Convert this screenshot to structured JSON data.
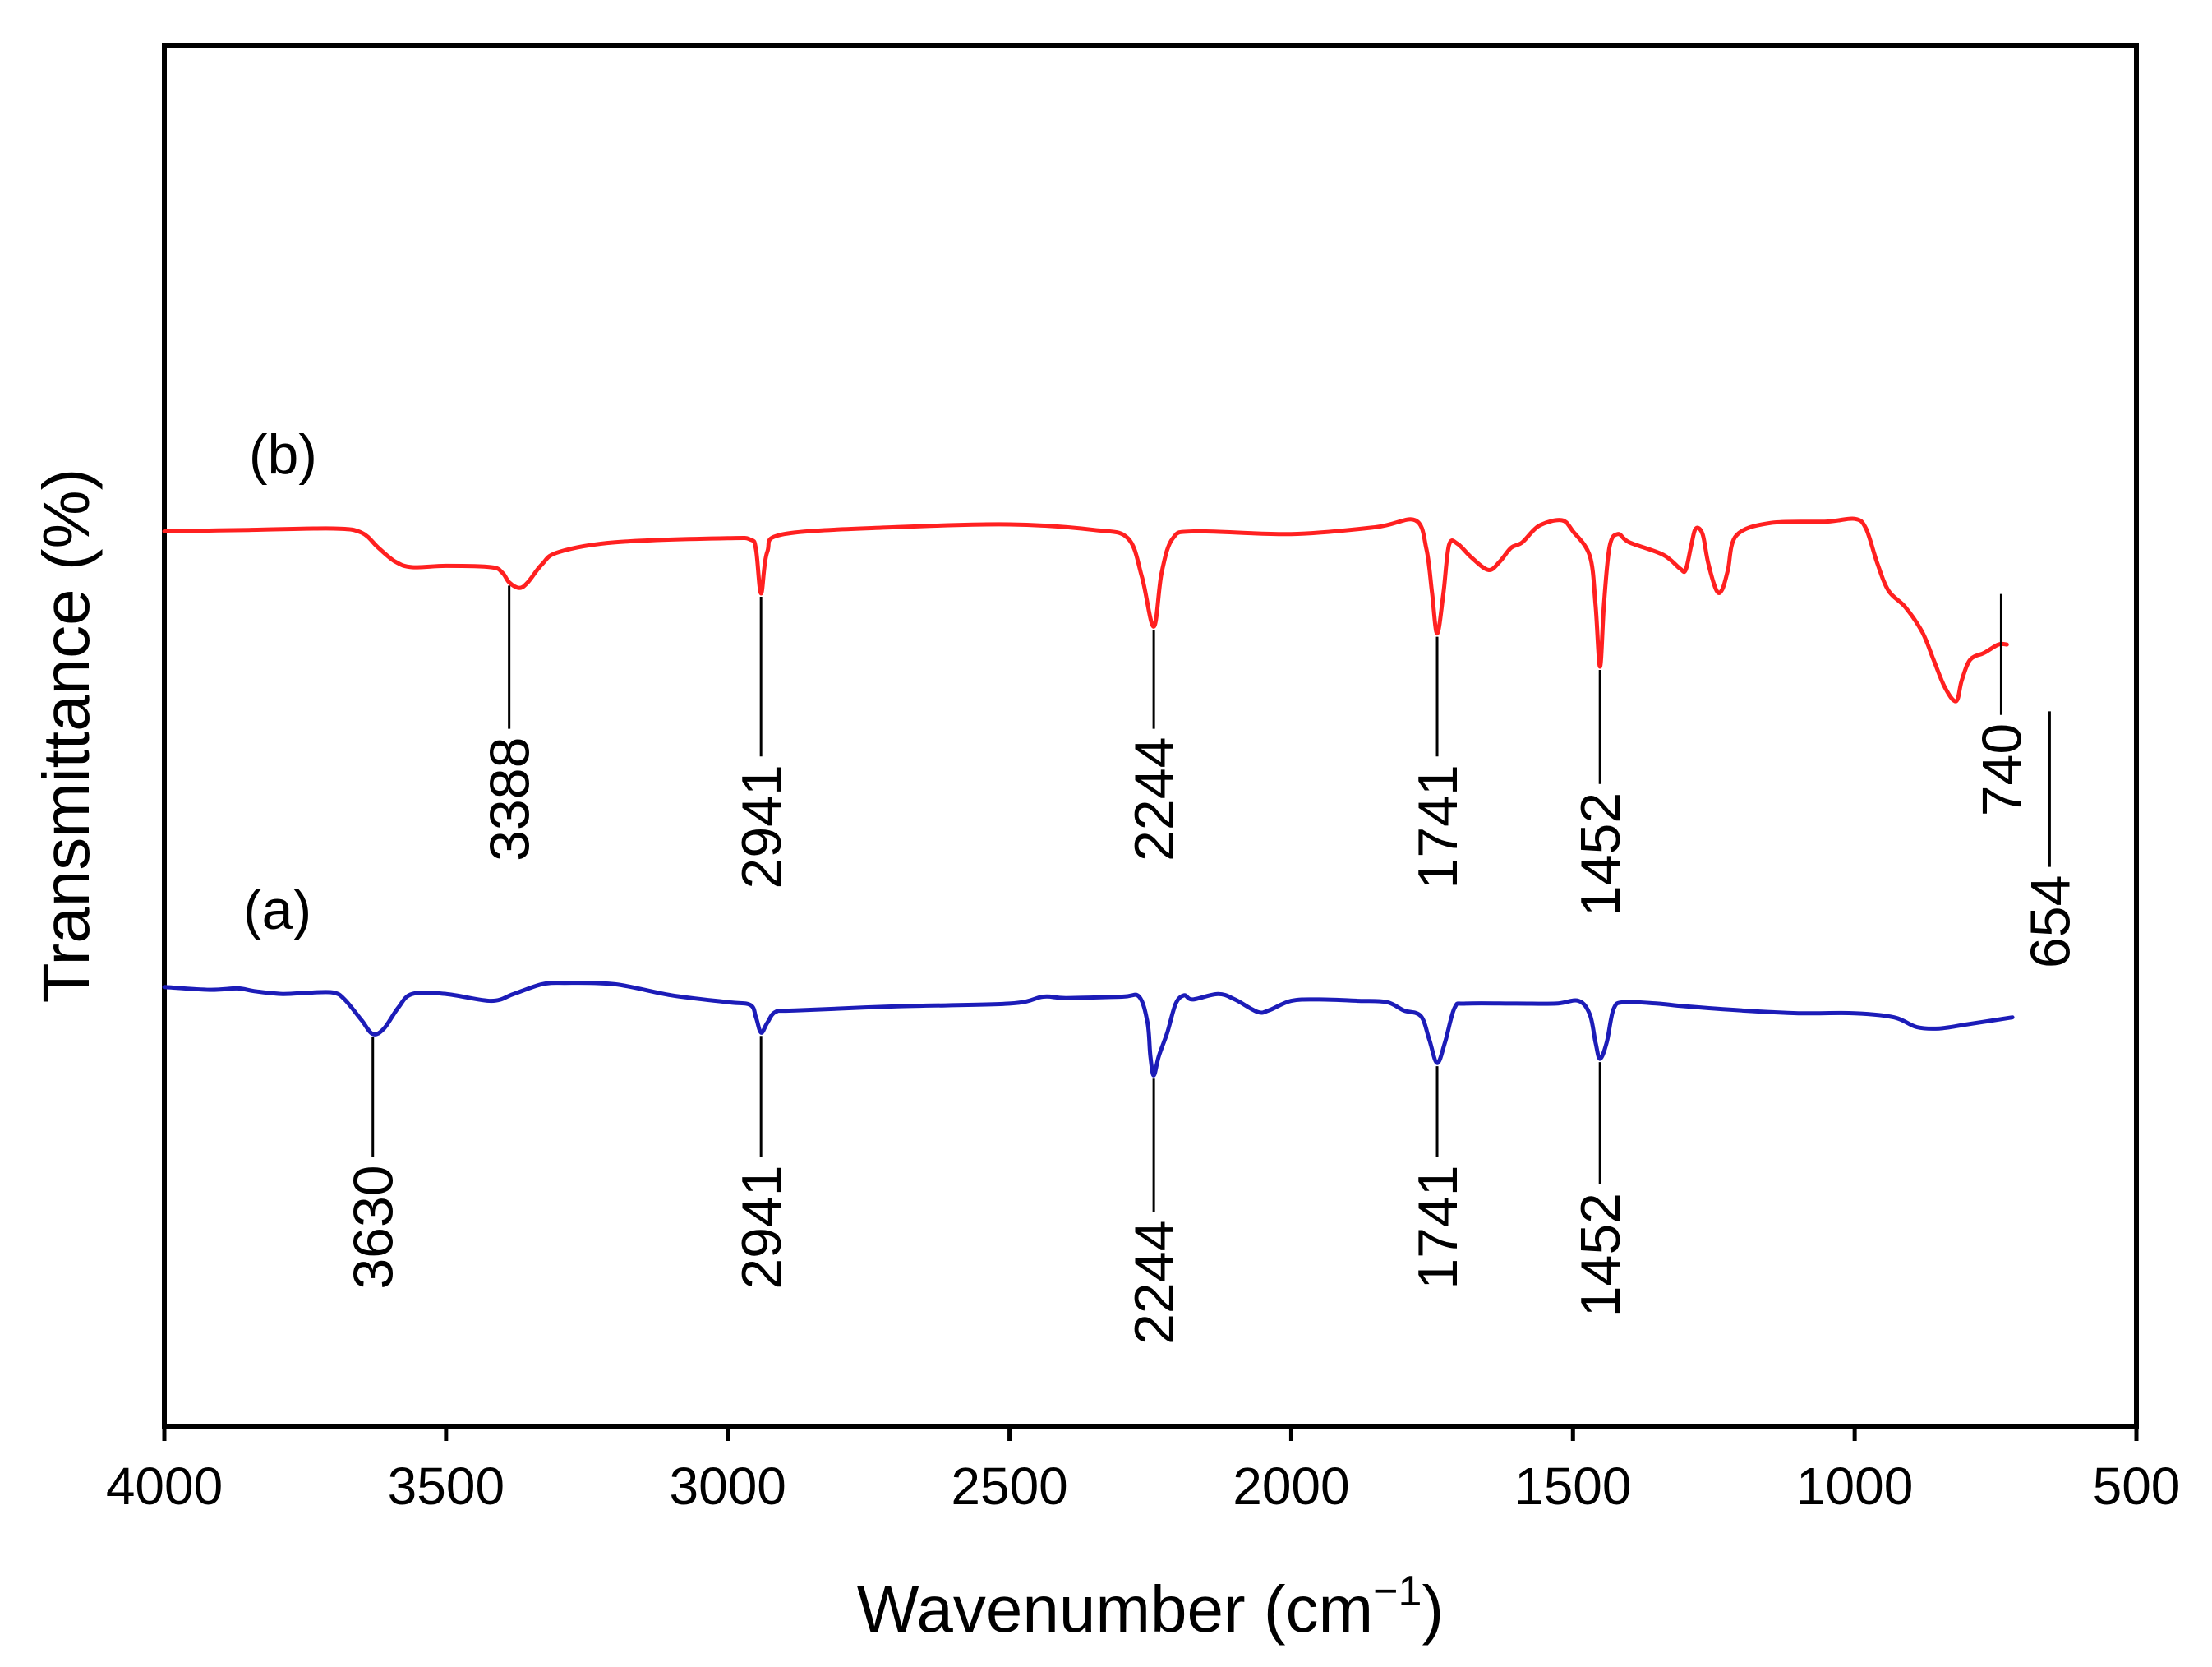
{
  "chart_data": {
    "type": "line",
    "title": "",
    "xlabel": "Wavenumber (cm",
    "xlabel_sup": "−1",
    "xlabel_close": ")",
    "ylabel": "Transmittance (%)",
    "xlim": [
      4000,
      500
    ],
    "ylim": [
      0,
      100
    ],
    "x_ticks": [
      4000,
      3500,
      3000,
      2500,
      2000,
      1500,
      1000,
      500
    ],
    "x_tick_labels": [
      "4000",
      "3500",
      "3000",
      "2500",
      "2000",
      "1500",
      "1000",
      "500"
    ],
    "series": [
      {
        "name": "(b)",
        "color": "#ff2020",
        "label_at": [
          3850,
          69
        ],
        "points": [
          [
            4000,
            64.8
          ],
          [
            3850,
            64.9
          ],
          [
            3700,
            65.0
          ],
          [
            3650,
            64.7
          ],
          [
            3620,
            63.6
          ],
          [
            3590,
            62.6
          ],
          [
            3560,
            62.2
          ],
          [
            3500,
            62.3
          ],
          [
            3420,
            62.2
          ],
          [
            3400,
            61.8
          ],
          [
            3388,
            61.1
          ],
          [
            3370,
            60.7
          ],
          [
            3355,
            61.1
          ],
          [
            3330,
            62.4
          ],
          [
            3300,
            63.3
          ],
          [
            3200,
            64.0
          ],
          [
            3000,
            64.3
          ],
          [
            2960,
            64.2
          ],
          [
            2950,
            63.5
          ],
          [
            2941,
            60.3
          ],
          [
            2930,
            63.3
          ],
          [
            2900,
            64.6
          ],
          [
            2700,
            65.1
          ],
          [
            2500,
            65.3
          ],
          [
            2350,
            64.9
          ],
          [
            2290,
            64.3
          ],
          [
            2265,
            61.5
          ],
          [
            2244,
            57.9
          ],
          [
            2230,
            61.8
          ],
          [
            2210,
            64.3
          ],
          [
            2170,
            64.8
          ],
          [
            2000,
            64.6
          ],
          [
            1850,
            65.1
          ],
          [
            1780,
            65.6
          ],
          [
            1760,
            63.5
          ],
          [
            1750,
            60.3
          ],
          [
            1741,
            57.4
          ],
          [
            1730,
            60.3
          ],
          [
            1720,
            63.8
          ],
          [
            1705,
            63.9
          ],
          [
            1680,
            62.9
          ],
          [
            1650,
            62.0
          ],
          [
            1630,
            62.6
          ],
          [
            1610,
            63.6
          ],
          [
            1590,
            64.0
          ],
          [
            1560,
            65.2
          ],
          [
            1520,
            65.6
          ],
          [
            1500,
            64.8
          ],
          [
            1470,
            63.0
          ],
          [
            1460,
            59.5
          ],
          [
            1452,
            55.0
          ],
          [
            1445,
            59.5
          ],
          [
            1435,
            63.7
          ],
          [
            1420,
            64.6
          ],
          [
            1400,
            64.0
          ],
          [
            1340,
            63.1
          ],
          [
            1310,
            62.1
          ],
          [
            1300,
            62.0
          ],
          [
            1290,
            63.8
          ],
          [
            1282,
            65.0
          ],
          [
            1270,
            64.6
          ],
          [
            1260,
            62.5
          ],
          [
            1245,
            60.5
          ],
          [
            1235,
            60.6
          ],
          [
            1225,
            62.0
          ],
          [
            1210,
            64.5
          ],
          [
            1150,
            65.4
          ],
          [
            1050,
            65.5
          ],
          [
            1000,
            65.7
          ],
          [
            980,
            65.0
          ],
          [
            960,
            62.5
          ],
          [
            940,
            60.5
          ],
          [
            910,
            59.3
          ],
          [
            880,
            57.5
          ],
          [
            860,
            55.5
          ],
          [
            840,
            53.5
          ],
          [
            820,
            52.5
          ],
          [
            810,
            54.0
          ],
          [
            795,
            55.5
          ],
          [
            770,
            56.0
          ],
          [
            745,
            56.6
          ],
          [
            730,
            56.6
          ]
        ]
      },
      {
        "name": "(a)",
        "color": "#1c1cb8",
        "label_at": [
          3860,
          36
        ],
        "points": [
          [
            4000,
            31.8
          ],
          [
            3920,
            31.6
          ],
          [
            3870,
            31.7
          ],
          [
            3840,
            31.5
          ],
          [
            3790,
            31.3
          ],
          [
            3740,
            31.4
          ],
          [
            3700,
            31.4
          ],
          [
            3680,
            30.9
          ],
          [
            3650,
            29.4
          ],
          [
            3630,
            28.4
          ],
          [
            3610,
            28.8
          ],
          [
            3585,
            30.3
          ],
          [
            3560,
            31.3
          ],
          [
            3500,
            31.3
          ],
          [
            3420,
            30.8
          ],
          [
            3380,
            31.3
          ],
          [
            3330,
            32.0
          ],
          [
            3290,
            32.1
          ],
          [
            3200,
            32.0
          ],
          [
            3100,
            31.2
          ],
          [
            3000,
            30.7
          ],
          [
            2960,
            30.5
          ],
          [
            2950,
            29.6
          ],
          [
            2941,
            28.5
          ],
          [
            2930,
            29.2
          ],
          [
            2915,
            30.0
          ],
          [
            2880,
            30.1
          ],
          [
            2700,
            30.4
          ],
          [
            2500,
            30.6
          ],
          [
            2440,
            31.1
          ],
          [
            2400,
            31.0
          ],
          [
            2300,
            31.1
          ],
          [
            2270,
            31.1
          ],
          [
            2255,
            29.2
          ],
          [
            2250,
            26.8
          ],
          [
            2244,
            25.4
          ],
          [
            2235,
            26.8
          ],
          [
            2220,
            28.5
          ],
          [
            2205,
            30.6
          ],
          [
            2190,
            31.2
          ],
          [
            2175,
            30.9
          ],
          [
            2130,
            31.3
          ],
          [
            2100,
            30.9
          ],
          [
            2060,
            30.0
          ],
          [
            2040,
            30.1
          ],
          [
            2000,
            30.8
          ],
          [
            1950,
            30.9
          ],
          [
            1880,
            30.8
          ],
          [
            1830,
            30.7
          ],
          [
            1800,
            30.1
          ],
          [
            1770,
            29.7
          ],
          [
            1755,
            28.0
          ],
          [
            1741,
            26.3
          ],
          [
            1727,
            27.8
          ],
          [
            1710,
            30.3
          ],
          [
            1690,
            30.6
          ],
          [
            1600,
            30.6
          ],
          [
            1530,
            30.6
          ],
          [
            1490,
            30.8
          ],
          [
            1470,
            29.8
          ],
          [
            1460,
            27.8
          ],
          [
            1452,
            26.6
          ],
          [
            1440,
            27.8
          ],
          [
            1428,
            30.2
          ],
          [
            1410,
            30.7
          ],
          [
            1350,
            30.6
          ],
          [
            1300,
            30.4
          ],
          [
            1200,
            30.1
          ],
          [
            1100,
            29.9
          ],
          [
            1000,
            29.9
          ],
          [
            930,
            29.6
          ],
          [
            890,
            28.9
          ],
          [
            850,
            28.8
          ],
          [
            800,
            29.1
          ],
          [
            720,
            29.6
          ]
        ]
      }
    ],
    "annotations": [
      {
        "series": "(b)",
        "label": "3388",
        "peak_x": 3388,
        "peak_y": 61.1,
        "label_x": 3388,
        "line_end_y": 50.5
      },
      {
        "series": "(b)",
        "label": "2941",
        "peak_x": 2941,
        "peak_y": 60.3,
        "label_x": 2941,
        "line_end_y": 48.5
      },
      {
        "series": "(b)",
        "label": "2244",
        "peak_x": 2244,
        "peak_y": 57.9,
        "label_x": 2244,
        "line_end_y": 50.5
      },
      {
        "series": "(b)",
        "label": "1741",
        "peak_x": 1741,
        "peak_y": 57.4,
        "label_x": 1741,
        "line_end_y": 48.5
      },
      {
        "series": "(b)",
        "label": "1452",
        "peak_x": 1452,
        "peak_y": 55.0,
        "label_x": 1452,
        "line_end_y": 46.5
      },
      {
        "series": "(b)",
        "label": "740",
        "peak_x": 740,
        "peak_y": 60.5,
        "label_x": 740,
        "line_end_y": 51.5
      },
      {
        "series": "(b)",
        "label": "654",
        "peak_x": 654,
        "peak_y": 52.0,
        "label_x": 654,
        "line_end_y": 40.5
      },
      {
        "series": "(a)",
        "label": "3630",
        "peak_x": 3630,
        "peak_y": 28.4,
        "label_x": 3630,
        "line_end_y": 19.5
      },
      {
        "series": "(a)",
        "label": "2941",
        "peak_x": 2941,
        "peak_y": 28.5,
        "label_x": 2941,
        "line_end_y": 19.5
      },
      {
        "series": "(a)",
        "label": "2244",
        "peak_x": 2244,
        "peak_y": 25.4,
        "label_x": 2244,
        "line_end_y": 15.5
      },
      {
        "series": "(a)",
        "label": "1741",
        "peak_x": 1741,
        "peak_y": 26.3,
        "label_x": 1741,
        "line_end_y": 19.5
      },
      {
        "series": "(a)",
        "label": "1452",
        "peak_x": 1452,
        "peak_y": 26.6,
        "label_x": 1452,
        "line_end_y": 17.5
      }
    ],
    "grid": false,
    "legend": "none"
  }
}
